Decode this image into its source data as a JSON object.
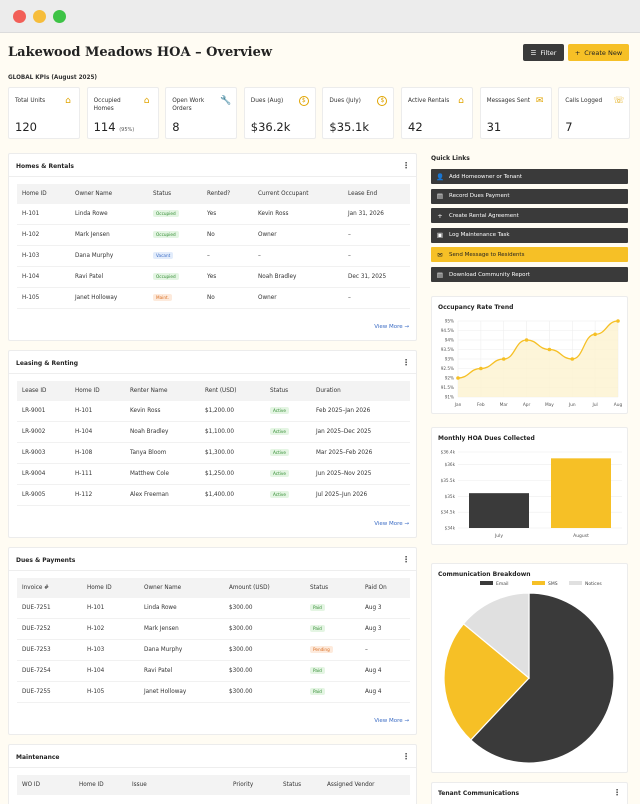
{
  "header": {
    "title": "Lakewood Meadows HOA – Overview",
    "filter_label": "Filter",
    "create_label": "Create New"
  },
  "kpi_section_label": "GLOBAL KPIs (August 2025)",
  "kpis": [
    {
      "label": "Total Units",
      "value": "120",
      "sub": "",
      "icon": "house-icon"
    },
    {
      "label": "Occupied Homes",
      "value": "114",
      "sub": "(95%)",
      "icon": "house-icon"
    },
    {
      "label": "Open Work Orders",
      "value": "8",
      "sub": "",
      "icon": "wrench-icon"
    },
    {
      "label": "Dues (Aug)",
      "value": "$36.2k",
      "sub": "",
      "icon": "dollar-icon"
    },
    {
      "label": "Dues (July)",
      "value": "$35.1k",
      "sub": "",
      "icon": "dollar-icon"
    },
    {
      "label": "Active Rentals",
      "value": "42",
      "sub": "",
      "icon": "rental-home-icon"
    },
    {
      "label": "Messages Sent",
      "value": "31",
      "sub": "",
      "icon": "envelope-icon"
    },
    {
      "label": "Calls Logged",
      "value": "7",
      "sub": "",
      "icon": "phone-icon"
    }
  ],
  "homes": {
    "title": "Homes & Rentals",
    "columns": [
      "Home ID",
      "Owner Name",
      "Status",
      "Rented?",
      "Current Occupant",
      "Lease End"
    ],
    "rows": [
      [
        "H-101",
        "Linda Rowe",
        "Occupied",
        "Yes",
        "Kevin Ross",
        "Jan 31, 2026"
      ],
      [
        "H-102",
        "Mark Jensen",
        "Occupied",
        "No",
        "Owner",
        "–"
      ],
      [
        "H-103",
        "Dana Murphy",
        "Vacant",
        "–",
        "–",
        "–"
      ],
      [
        "H-104",
        "Ravi Patel",
        "Occupied",
        "Yes",
        "Noah Bradley",
        "Dec 31, 2025"
      ],
      [
        "H-105",
        "Janet Holloway",
        "Maint.",
        "No",
        "Owner",
        "–"
      ]
    ],
    "view_more": "View More →"
  },
  "leasing": {
    "title": "Leasing & Renting",
    "columns": [
      "Lease ID",
      "Home ID",
      "Renter Name",
      "Rent (USD)",
      "Status",
      "Duration"
    ],
    "rows": [
      [
        "LR-9001",
        "H-101",
        "Kevin Ross",
        "$1,200.00",
        "Active",
        "Feb 2025–Jan 2026"
      ],
      [
        "LR-9002",
        "H-104",
        "Noah Bradley",
        "$1,100.00",
        "Active",
        "Jan 2025–Dec 2025"
      ],
      [
        "LR-9003",
        "H-108",
        "Tanya Bloom",
        "$1,300.00",
        "Active",
        "Mar 2025–Feb 2026"
      ],
      [
        "LR-9004",
        "H-111",
        "Matthew Cole",
        "$1,250.00",
        "Active",
        "Jun 2025–Nov 2025"
      ],
      [
        "LR-9005",
        "H-112",
        "Alex Freeman",
        "$1,400.00",
        "Active",
        "Jul 2025–Jun 2026"
      ]
    ],
    "view_more": "View More →"
  },
  "dues": {
    "title": "Dues & Payments",
    "columns": [
      "Invoice #",
      "Home ID",
      "Owner Name",
      "Amount (USD)",
      "Status",
      "Paid On"
    ],
    "rows": [
      [
        "DUE-7251",
        "H-101",
        "Linda Rowe",
        "$300.00",
        "Paid",
        "Aug 3"
      ],
      [
        "DUE-7252",
        "H-102",
        "Mark Jensen",
        "$300.00",
        "Paid",
        "Aug 3"
      ],
      [
        "DUE-7253",
        "H-103",
        "Dana Murphy",
        "$300.00",
        "Pending",
        "–"
      ],
      [
        "DUE-7254",
        "H-104",
        "Ravi Patel",
        "$300.00",
        "Paid",
        "Aug 4"
      ],
      [
        "DUE-7255",
        "H-105",
        "Janet Holloway",
        "$300.00",
        "Paid",
        "Aug 4"
      ]
    ],
    "view_more": "View More →"
  },
  "maintenance": {
    "title": "Maintenance",
    "columns": [
      "WO ID",
      "Home ID",
      "Issue",
      "Priority",
      "Status",
      "Assigned Vendor"
    ]
  },
  "quick_links": {
    "title": "Quick Links",
    "items": [
      {
        "label": "Add Homeowner or Tenant",
        "icon": "add-user-icon"
      },
      {
        "label": "Record Dues Payment",
        "icon": "payment-icon"
      },
      {
        "label": "Create Rental Agreement",
        "icon": "plus-icon"
      },
      {
        "label": "Log Maintenance Task",
        "icon": "task-icon"
      },
      {
        "label": "Send Message to Residents",
        "icon": "send-icon"
      },
      {
        "label": "Download Community Report",
        "icon": "report-icon"
      }
    ]
  },
  "occupancy_chart": {
    "title": "Occupancy Rate Trend"
  },
  "dues_chart": {
    "title": "Monthly HOA Dues Collected"
  },
  "comm_chart": {
    "title": "Communication Breakdown"
  },
  "tenant_comms": {
    "title": "Tenant Communications"
  },
  "colors": {
    "accent": "#f6c026",
    "dark": "#3a3a3a",
    "light_grey": "#e0e0e0",
    "background": "#fffcf3"
  },
  "chart_data": [
    {
      "type": "line",
      "title": "Occupancy Rate Trend",
      "x": [
        "Jan",
        "Feb",
        "Mar",
        "Apr",
        "May",
        "Jun",
        "Jul",
        "Aug"
      ],
      "series": [
        {
          "values": [
            92.0,
            92.5,
            93.0,
            94.0,
            93.5,
            93.0,
            94.3,
            95.0
          ]
        }
      ],
      "ylim": [
        91.0,
        95.0
      ],
      "yticks": [
        "91%",
        "91.5%",
        "92%",
        "92.5%",
        "93%",
        "93.5%",
        "94%",
        "94.5%",
        "95%"
      ],
      "grid": true
    },
    {
      "type": "bar",
      "title": "Monthly HOA Dues Collected",
      "categories": [
        "July",
        "August"
      ],
      "values": [
        35.1,
        36.2
      ],
      "ylim": [
        34,
        36.4
      ],
      "yticks": [
        "$34k",
        "$34.5k",
        "$35k",
        "$35.5k",
        "$36k",
        "$36.4k"
      ]
    },
    {
      "type": "pie",
      "title": "Communication Breakdown",
      "labels": [
        "Email",
        "SMS",
        "Notices"
      ],
      "values": [
        62,
        24,
        14
      ],
      "legend": "top"
    }
  ]
}
